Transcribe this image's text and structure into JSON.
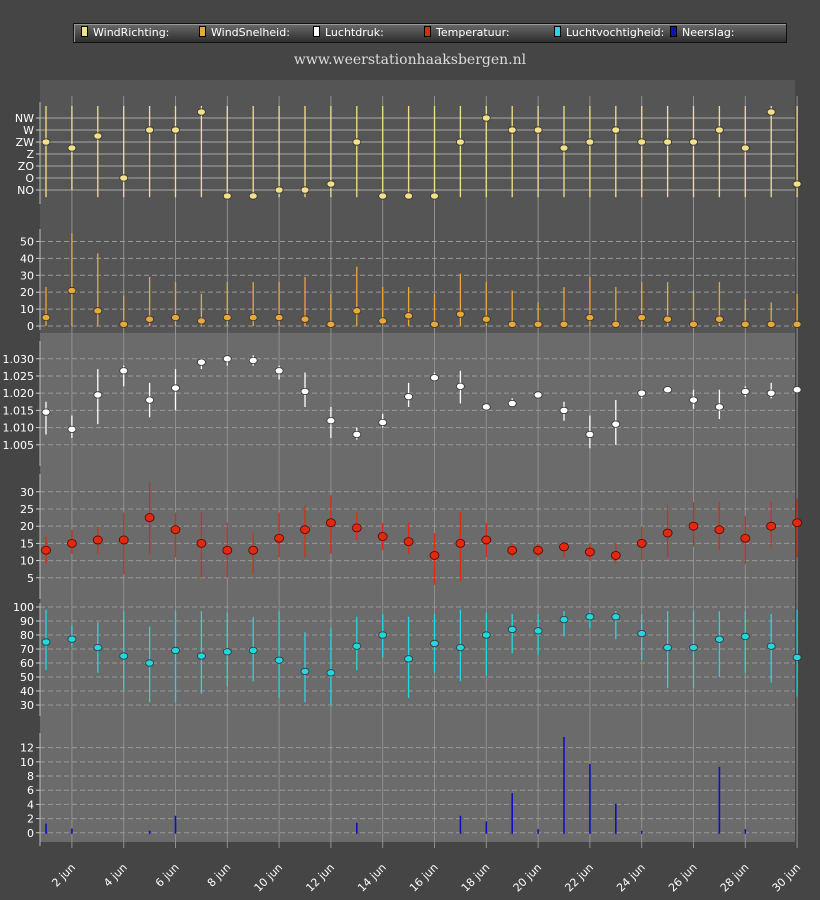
{
  "legend": [
    {
      "label": "WindRichting:",
      "color": "#f3e08a"
    },
    {
      "label": "WindSnelheid:",
      "color": "#e8a83a"
    },
    {
      "label": "Luchtdruk:",
      "color": "#ffffff"
    },
    {
      "label": "Temperatuur:",
      "color": "#e02a10"
    },
    {
      "label": "Luchtvochtigheid:",
      "color": "#20d8e0"
    },
    {
      "label": "Neerslag:",
      "color": "#1010c0"
    }
  ],
  "site_title": "www.weerstationhaaksbergen.nl",
  "chart_data": {
    "type": "scatter",
    "x_axis": {
      "labels": [
        "2 jun",
        "4 jun",
        "6 jun",
        "8 jun",
        "10 jun",
        "12 jun",
        "14 jun",
        "16 jun",
        "18 jun",
        "20 jun",
        "22 jun",
        "24 jun",
        "26 jun",
        "28 jun",
        "30 jun"
      ],
      "days": [
        1,
        2,
        3,
        4,
        5,
        6,
        7,
        8,
        9,
        10,
        11,
        12,
        13,
        14,
        15,
        16,
        17,
        18,
        19,
        20,
        21,
        22,
        23,
        24,
        25,
        26,
        27,
        28,
        29,
        30
      ]
    },
    "panels": [
      {
        "name": "WindRichting",
        "color": "#f3e08a",
        "tick_labels": [
          "NW",
          "W",
          "ZW",
          "Z",
          "ZO",
          "O",
          "NO"
        ],
        "tick_values": [
          6,
          5,
          4,
          3,
          2,
          1,
          0
        ],
        "ylim": [
          -0.6,
          7
        ],
        "values": [
          4,
          3.5,
          4.5,
          1,
          5,
          5,
          6.5,
          -0.5,
          -0.5,
          0,
          0,
          0.5,
          4,
          -0.5,
          -0.5,
          -0.5,
          4,
          6,
          5,
          5,
          3.5,
          4,
          5,
          4,
          4,
          4,
          5,
          3.5,
          6.5,
          0.5
        ],
        "low": [
          -0.6,
          0,
          -0.6,
          -0.6,
          -0.6,
          -0.6,
          -0.6,
          -0.6,
          -0.6,
          -0.6,
          -0.6,
          -0.6,
          -0.6,
          -0.6,
          -0.6,
          -0.6,
          -0.6,
          -0.6,
          -0.6,
          -0.6,
          -0.6,
          -0.6,
          -0.6,
          -0.6,
          -0.6,
          -0.6,
          -0.6,
          -0.6,
          -0.6,
          -0.6
        ],
        "high": [
          7,
          7,
          7,
          7,
          7,
          7,
          7,
          7,
          7,
          7,
          7,
          7,
          7,
          7,
          7,
          7,
          7,
          7,
          7,
          7,
          7,
          7,
          7,
          7,
          7,
          7,
          7,
          7,
          7,
          7
        ]
      },
      {
        "name": "WindSnelheid",
        "color": "#e8a83a",
        "tick_labels": [
          "0",
          "10",
          "20",
          "30",
          "40",
          "50"
        ],
        "tick_values": [
          0,
          10,
          20,
          30,
          40,
          50
        ],
        "ylim": [
          0,
          55
        ],
        "values": [
          5,
          21,
          9,
          1,
          4,
          5,
          3,
          5,
          5,
          5,
          4,
          1,
          9,
          3,
          6,
          1,
          7,
          4,
          1,
          1,
          1,
          5,
          1,
          5,
          4,
          1,
          4,
          1,
          1,
          1
        ],
        "low": [
          0,
          0,
          0,
          0,
          0,
          0,
          0,
          0,
          0,
          0,
          0,
          0,
          0,
          0,
          0,
          0,
          0,
          0,
          0,
          0,
          0,
          0,
          0,
          0,
          0,
          0,
          0,
          0,
          0,
          0
        ],
        "high": [
          23,
          55,
          43,
          18,
          29,
          26,
          19,
          26,
          26,
          26,
          29,
          19,
          35,
          23,
          23,
          19,
          31,
          26,
          21,
          14,
          23,
          29,
          23,
          26,
          26,
          21,
          26,
          16,
          14,
          19
        ]
      },
      {
        "name": "Luchtdruk",
        "color": "#ffffff",
        "tick_labels": [
          "1.005",
          "1.010",
          "1.015",
          "1.020",
          "1.025",
          "1.030"
        ],
        "tick_values": [
          1.005,
          1.01,
          1.015,
          1.02,
          1.025,
          1.03
        ],
        "ylim": [
          1.0,
          1.034
        ],
        "values": [
          1.0145,
          1.0095,
          1.0195,
          1.0265,
          1.018,
          1.0215,
          1.029,
          1.03,
          1.0295,
          1.0265,
          1.0205,
          1.012,
          1.008,
          1.0115,
          1.019,
          1.0245,
          1.022,
          1.016,
          1.017,
          1.0195,
          1.015,
          1.008,
          1.011,
          1.02,
          1.021,
          1.018,
          1.016,
          1.0205,
          1.02,
          1.021
        ],
        "low": [
          1.008,
          1.007,
          1.011,
          1.022,
          1.013,
          1.015,
          1.027,
          1.028,
          1.028,
          1.024,
          1.016,
          1.007,
          1.0065,
          1.01,
          1.016,
          1.024,
          1.017,
          1.0155,
          1.016,
          1.0185,
          1.012,
          1.004,
          1.005,
          1.0185,
          1.0205,
          1.0155,
          1.0125,
          1.019,
          1.0185,
          1.02
        ],
        "high": [
          1.0175,
          1.0135,
          1.027,
          1.028,
          1.023,
          1.027,
          1.03,
          1.031,
          1.031,
          1.028,
          1.026,
          1.016,
          1.01,
          1.014,
          1.023,
          1.026,
          1.0265,
          1.017,
          1.0185,
          1.02,
          1.0175,
          1.0135,
          1.018,
          1.021,
          1.0215,
          1.021,
          1.021,
          1.022,
          1.023,
          1.022
        ]
      },
      {
        "name": "Temperatuur",
        "color": "#e02a10",
        "tick_labels": [
          "5",
          "10",
          "15",
          "20",
          "25",
          "30"
        ],
        "tick_values": [
          5,
          10,
          15,
          20,
          25,
          30
        ],
        "ylim": [
          0,
          34
        ],
        "values": [
          13,
          15,
          16,
          16,
          22.5,
          19,
          15,
          13,
          13,
          16.5,
          19,
          21,
          19.5,
          17,
          15.5,
          11.5,
          15,
          16,
          13,
          13,
          14,
          12.5,
          11.5,
          15,
          18,
          20,
          19,
          16.5,
          20,
          21
        ],
        "low": [
          9,
          12,
          12,
          6,
          12,
          11,
          5,
          5,
          6,
          11,
          11,
          12,
          16,
          13,
          12,
          3,
          4,
          11,
          11,
          11,
          11,
          10,
          9,
          10,
          11,
          14,
          13,
          9,
          14,
          11
        ],
        "high": [
          17,
          19,
          20,
          24,
          33,
          24,
          24,
          21,
          18,
          24,
          26,
          29,
          24,
          21,
          21,
          18,
          24,
          21,
          15,
          15,
          15,
          15,
          15,
          20,
          26,
          27,
          27,
          23,
          27,
          28
        ]
      },
      {
        "name": "Luchtvochtigheid",
        "color": "#20d8e0",
        "tick_labels": [
          "30",
          "40",
          "50",
          "60",
          "70",
          "80",
          "90",
          "100"
        ],
        "tick_values": [
          30,
          40,
          50,
          60,
          70,
          80,
          90,
          100
        ],
        "ylim": [
          25,
          100
        ],
        "values": [
          75,
          77,
          71,
          65,
          60,
          69,
          65,
          68,
          69,
          62,
          54,
          53,
          72,
          80,
          63,
          74,
          71,
          80,
          84,
          83,
          91,
          93,
          93,
          81,
          71,
          71,
          77,
          79,
          72,
          64
        ],
        "low": [
          55,
          72,
          53,
          41,
          32,
          32,
          38,
          43,
          47,
          35,
          32,
          30,
          55,
          64,
          35,
          53,
          47,
          51,
          67,
          66,
          79,
          85,
          77,
          62,
          42,
          42,
          50,
          53,
          46,
          36
        ],
        "high": [
          98,
          87,
          89,
          97,
          86,
          97,
          97,
          96,
          93,
          97,
          82,
          85,
          93,
          95,
          93,
          95,
          98,
          96,
          95,
          95,
          97,
          97,
          97,
          95,
          97,
          97,
          97,
          97,
          95,
          98
        ]
      },
      {
        "name": "Neerslag",
        "color": "#1010c0",
        "tick_labels": [
          "0",
          "2",
          "4",
          "6",
          "8",
          "10",
          "12"
        ],
        "tick_values": [
          0,
          2,
          4,
          6,
          8,
          10,
          12
        ],
        "ylim": [
          -1.3,
          13.5
        ],
        "values": [
          1.3,
          0.6,
          0,
          0,
          0.2,
          2.4,
          0,
          0,
          0,
          0,
          0,
          0,
          1.4,
          0,
          0,
          0,
          2.4,
          1.6,
          5.6,
          0.5,
          13.5,
          9.7,
          4.1,
          0.2,
          0,
          0,
          9.3,
          0.5,
          0,
          0
        ]
      }
    ]
  }
}
